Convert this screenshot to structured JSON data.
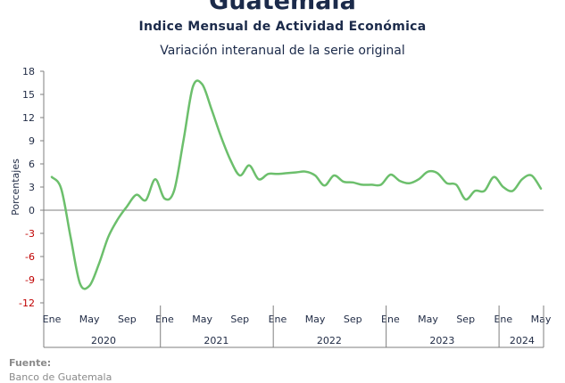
{
  "header": {
    "title": "Guatemala",
    "subtitle": "Indice Mensual de  Actividad Económica",
    "subtitle2": "Variación interanual de la serie original"
  },
  "footer": {
    "source_label": "Fuente:",
    "source_text": "Banco de Guatemala"
  },
  "colors": {
    "line": "#6cbf6c",
    "negative_tick": "#c00000",
    "positive_tick": "#1f2a44",
    "axis": "#7f7f7f"
  },
  "chart_data": {
    "type": "line",
    "title": "Guatemala",
    "subtitle": "Indice Mensual de  Actividad Económica",
    "ylabel": "Porcentajes",
    "ylim": [
      -12,
      18
    ],
    "yticks": [
      18,
      15,
      12,
      9,
      6,
      3,
      0,
      -3,
      -6,
      -9,
      -12
    ],
    "month_labels": [
      "Ene",
      "May",
      "Sep",
      "Ene",
      "May",
      "Sep",
      "Ene",
      "May",
      "Sep",
      "Ene",
      "May",
      "Sep",
      "Ene",
      "May"
    ],
    "years": [
      "2020",
      "2021",
      "2022",
      "2023",
      "2024"
    ],
    "grid": false,
    "series": [
      {
        "values": [
          4.3,
          2.8,
          -3.5,
          -9.5,
          -9.8,
          -7.0,
          -3.5,
          -1.2,
          0.5,
          2.0,
          1.3,
          4.0,
          1.5,
          2.5,
          9.0,
          16.0,
          16.3,
          13.0,
          9.5,
          6.5,
          4.5,
          5.8,
          4.0,
          4.7,
          4.7,
          4.8,
          4.9,
          5.0,
          4.5,
          3.2,
          4.5,
          3.7,
          3.6,
          3.3,
          3.3,
          3.3,
          4.6,
          3.8,
          3.5,
          4.0,
          5.0,
          4.8,
          3.5,
          3.3,
          1.4,
          2.5,
          2.5,
          4.3,
          3.0,
          2.5,
          4.0,
          4.5,
          2.8
        ]
      }
    ]
  }
}
